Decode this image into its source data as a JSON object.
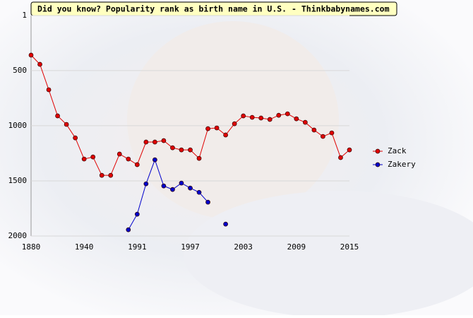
{
  "chart_data": {
    "type": "line",
    "title": "Did you know? Popularity rank as birth name in U.S. - Thinkbabynames.com",
    "categories": [
      "1880",
      null,
      null,
      null,
      null,
      null,
      "1940",
      null,
      null,
      null,
      null,
      null,
      "1991",
      null,
      null,
      null,
      null,
      null,
      "1997",
      null,
      null,
      null,
      null,
      null,
      "2003",
      null,
      null,
      null,
      null,
      null,
      "2009",
      null,
      null,
      null,
      null,
      null,
      "2015"
    ],
    "series": [
      {
        "name": "Zack",
        "color": "#e00000",
        "values": [
          360,
          443,
          674,
          911,
          988,
          1110,
          1302,
          1283,
          1450,
          1450,
          1257,
          1302,
          1353,
          1148,
          1148,
          1135,
          1200,
          1219,
          1219,
          1296,
          1027,
          1020,
          1084,
          982,
          911,
          924,
          930,
          943,
          905,
          892,
          937,
          969,
          1039,
          1097,
          1065,
          1289,
          1219
        ]
      },
      {
        "name": "Zakery",
        "color": "#0000cc",
        "values": [
          null,
          null,
          null,
          null,
          null,
          null,
          null,
          null,
          null,
          null,
          null,
          1943,
          1802,
          1527,
          1309,
          1546,
          1578,
          1520,
          1565,
          1604,
          1693,
          null,
          1892,
          null,
          null,
          null,
          null,
          null,
          null,
          null,
          null,
          null,
          null,
          null,
          null,
          null,
          null
        ]
      }
    ],
    "ylim": [
      2000,
      1
    ],
    "yticks": [
      1,
      500,
      1000,
      1500,
      2000
    ],
    "grid": true,
    "legend": "right"
  }
}
